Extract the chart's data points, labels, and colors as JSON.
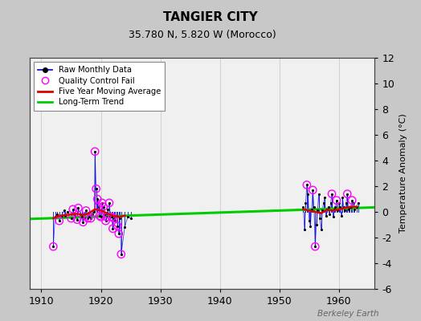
{
  "title": "TANGIER CITY",
  "subtitle": "35.780 N, 5.820 W (Morocco)",
  "ylabel": "Temperature Anomaly (°C)",
  "watermark": "Berkeley Earth",
  "xlim": [
    1908,
    1966
  ],
  "ylim": [
    -6,
    12
  ],
  "yticks": [
    -6,
    -4,
    -2,
    0,
    2,
    4,
    6,
    8,
    10,
    12
  ],
  "xticks": [
    1910,
    1920,
    1930,
    1940,
    1950,
    1960
  ],
  "bg_color": "#c8c8c8",
  "plot_bg_color": "#f0f0f0",
  "raw_color": "#0000dd",
  "qc_color": "#ff00ff",
  "ma_color": "#dd0000",
  "trend_color": "#00cc00",
  "raw_monthly_data": [
    [
      1912.0,
      -2.7
    ],
    [
      1912.3,
      -0.4
    ],
    [
      1912.7,
      -0.2
    ],
    [
      1913.0,
      -0.7
    ],
    [
      1913.4,
      -0.3
    ],
    [
      1913.8,
      0.1
    ],
    [
      1914.0,
      -0.3
    ],
    [
      1914.4,
      0.0
    ],
    [
      1915.0,
      -0.5
    ],
    [
      1915.3,
      0.2
    ],
    [
      1915.6,
      -0.3
    ],
    [
      1916.0,
      -0.6
    ],
    [
      1916.2,
      0.3
    ],
    [
      1916.5,
      -0.2
    ],
    [
      1916.8,
      -0.4
    ],
    [
      1917.0,
      -0.8
    ],
    [
      1917.2,
      -0.5
    ],
    [
      1917.5,
      0.1
    ],
    [
      1917.8,
      -0.5
    ],
    [
      1918.0,
      -0.4
    ],
    [
      1918.3,
      -0.5
    ],
    [
      1918.6,
      -0.2
    ],
    [
      1918.9,
      0.0
    ],
    [
      1919.0,
      4.7
    ],
    [
      1919.2,
      1.8
    ],
    [
      1919.4,
      1.0
    ],
    [
      1919.6,
      0.4
    ],
    [
      1919.8,
      -0.3
    ],
    [
      1920.0,
      -0.4
    ],
    [
      1920.2,
      0.7
    ],
    [
      1920.4,
      0.4
    ],
    [
      1920.6,
      -0.2
    ],
    [
      1920.8,
      -0.7
    ],
    [
      1921.0,
      -0.4
    ],
    [
      1921.2,
      0.2
    ],
    [
      1921.4,
      0.7
    ],
    [
      1921.6,
      -0.4
    ],
    [
      1921.8,
      -0.4
    ],
    [
      1922.0,
      -1.3
    ],
    [
      1922.2,
      -0.5
    ],
    [
      1922.4,
      -0.7
    ],
    [
      1922.6,
      -0.3
    ],
    [
      1922.8,
      -1.1
    ],
    [
      1923.0,
      -1.7
    ],
    [
      1923.2,
      -0.5
    ],
    [
      1923.4,
      -3.3
    ],
    [
      1924.0,
      -1.2
    ],
    [
      1924.5,
      -0.4
    ],
    [
      1925.0,
      -0.5
    ],
    [
      1954.0,
      0.4
    ],
    [
      1954.2,
      -1.4
    ],
    [
      1954.4,
      0.7
    ],
    [
      1954.6,
      2.1
    ],
    [
      1954.8,
      1.4
    ],
    [
      1955.0,
      -0.7
    ],
    [
      1955.2,
      -1.1
    ],
    [
      1955.4,
      0.2
    ],
    [
      1955.6,
      1.7
    ],
    [
      1955.8,
      0.4
    ],
    [
      1956.0,
      -2.7
    ],
    [
      1956.2,
      -1.0
    ],
    [
      1956.4,
      0.1
    ],
    [
      1956.6,
      1.4
    ],
    [
      1956.8,
      -0.5
    ],
    [
      1957.0,
      -1.4
    ],
    [
      1957.2,
      0.1
    ],
    [
      1957.4,
      0.7
    ],
    [
      1957.6,
      1.1
    ],
    [
      1957.8,
      -0.3
    ],
    [
      1958.0,
      0.2
    ],
    [
      1958.2,
      0.4
    ],
    [
      1958.4,
      -0.2
    ],
    [
      1958.6,
      0.7
    ],
    [
      1958.8,
      1.4
    ],
    [
      1959.0,
      -0.4
    ],
    [
      1959.2,
      0.2
    ],
    [
      1959.4,
      0.4
    ],
    [
      1959.6,
      0.9
    ],
    [
      1959.8,
      0.1
    ],
    [
      1960.0,
      0.7
    ],
    [
      1960.2,
      0.4
    ],
    [
      1960.4,
      -0.3
    ],
    [
      1960.6,
      1.1
    ],
    [
      1960.8,
      0.4
    ],
    [
      1961.0,
      0.1
    ],
    [
      1961.2,
      0.7
    ],
    [
      1961.4,
      1.4
    ],
    [
      1961.6,
      0.2
    ],
    [
      1961.8,
      0.4
    ],
    [
      1962.0,
      0.4
    ],
    [
      1962.2,
      0.9
    ],
    [
      1962.4,
      0.7
    ],
    [
      1962.6,
      0.2
    ],
    [
      1963.0,
      0.4
    ],
    [
      1963.2,
      0.7
    ]
  ],
  "qc_fail_points": [
    [
      1912.0,
      -2.7
    ],
    [
      1913.0,
      -0.7
    ],
    [
      1915.0,
      -0.5
    ],
    [
      1915.3,
      0.2
    ],
    [
      1916.0,
      -0.6
    ],
    [
      1916.2,
      0.3
    ],
    [
      1917.0,
      -0.8
    ],
    [
      1917.5,
      0.1
    ],
    [
      1917.8,
      -0.5
    ],
    [
      1918.3,
      -0.5
    ],
    [
      1919.0,
      4.7
    ],
    [
      1919.2,
      1.8
    ],
    [
      1919.4,
      1.0
    ],
    [
      1919.6,
      0.4
    ],
    [
      1919.8,
      -0.3
    ],
    [
      1920.0,
      -0.4
    ],
    [
      1920.2,
      0.7
    ],
    [
      1920.4,
      0.4
    ],
    [
      1920.8,
      -0.7
    ],
    [
      1921.0,
      -0.4
    ],
    [
      1921.4,
      0.7
    ],
    [
      1921.8,
      -0.4
    ],
    [
      1922.0,
      -1.3
    ],
    [
      1922.2,
      -0.5
    ],
    [
      1922.8,
      -1.1
    ],
    [
      1923.0,
      -1.7
    ],
    [
      1923.4,
      -3.3
    ],
    [
      1954.6,
      2.1
    ],
    [
      1955.6,
      1.7
    ],
    [
      1956.0,
      -2.7
    ],
    [
      1958.8,
      1.4
    ],
    [
      1959.6,
      0.9
    ],
    [
      1961.4,
      1.4
    ],
    [
      1962.2,
      0.9
    ]
  ],
  "five_year_ma_early": [
    [
      1912.0,
      -0.5
    ],
    [
      1913.0,
      -0.3
    ],
    [
      1914.0,
      -0.25
    ],
    [
      1915.0,
      -0.2
    ],
    [
      1916.0,
      -0.15
    ],
    [
      1917.0,
      -0.25
    ],
    [
      1918.0,
      -0.1
    ],
    [
      1919.0,
      0.2
    ],
    [
      1920.0,
      0.1
    ],
    [
      1921.0,
      -0.1
    ],
    [
      1922.0,
      -0.3
    ],
    [
      1923.0,
      -0.4
    ],
    [
      1924.0,
      -0.3
    ]
  ],
  "five_year_ma_late": [
    [
      1954.0,
      0.2
    ],
    [
      1955.0,
      0.1
    ],
    [
      1956.0,
      0.0
    ],
    [
      1957.0,
      -0.1
    ],
    [
      1958.0,
      0.15
    ],
    [
      1959.0,
      0.1
    ],
    [
      1960.0,
      0.2
    ],
    [
      1961.0,
      0.3
    ],
    [
      1962.0,
      0.4
    ],
    [
      1963.0,
      0.4
    ]
  ],
  "trend_x": [
    1908,
    1966
  ],
  "trend_y": [
    -0.55,
    0.35
  ]
}
